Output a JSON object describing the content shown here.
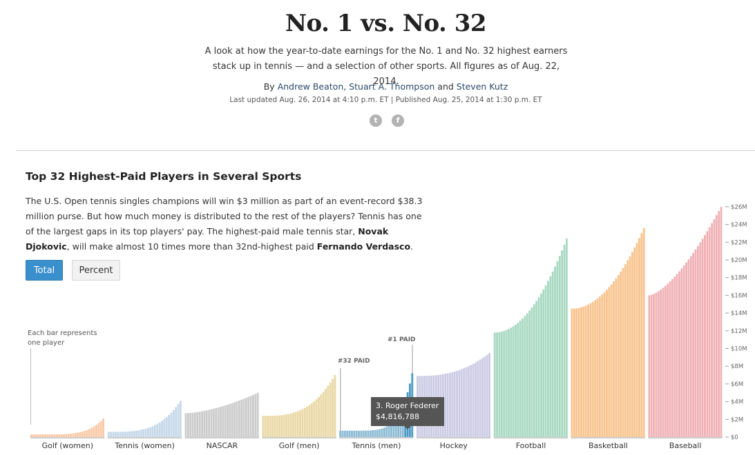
{
  "header": {
    "title": "No. 1 vs. No. 32",
    "dek": "A look at how the year-to-date earnings for the No. 1 and No. 32 highest earners stack up in tennis — and a selection of other sports. All figures as of Aug. 22, 2014.",
    "by": "By",
    "authors": [
      "Andrew Beaton",
      "Stuart A. Thompson",
      "Steven Kutz"
    ],
    "sep": ", ",
    "and": " and ",
    "dateline": "Last updated Aug. 26, 2014 at 4:10 p.m. ET | Published Aug. 25, 2014 at 1:30 p.m. ET"
  },
  "share": {
    "twitter_icon": "twitter-icon",
    "facebook_icon": "facebook-icon"
  },
  "chart_section": {
    "title": "Top 32 Highest-Paid Players in Several Sports",
    "desc_1": "The U.S. Open tennis singles champions will win $3 million as part of an event-record $38.3 million purse. But how much money is distributed to the rest of the players? Tennis has one of the largest gaps in its top players' pay. The highest-paid male tennis star, ",
    "desc_bold_1": "Novak Djokovic",
    "desc_2": ", will make almost 10 times more than 32nd-highest paid ",
    "desc_bold_2": "Fernando Verdasco",
    "desc_3": ".",
    "buttons": {
      "total": "Total",
      "percent": "Percent"
    }
  },
  "annotations": {
    "each_bar": "Each bar represents one player",
    "num32": "#32 PAID",
    "num1": "#1 PAID"
  },
  "tooltip": {
    "name": "3. Roger Federer",
    "value": "$4,816,788"
  },
  "chart_data": {
    "type": "bar",
    "ylim": [
      0,
      26
    ],
    "yticks": [
      "$0",
      "$2M",
      "$4M",
      "$6M",
      "$8M",
      "$10M",
      "$12M",
      "$14M",
      "$16M",
      "$18M",
      "$20M",
      "$22M",
      "$24M",
      "$26M"
    ],
    "sports": [
      {
        "name": "Golf (women)",
        "color": "#f9c9a6",
        "min": 0.3,
        "max": 2.1,
        "curve": 5
      },
      {
        "name": "Tennis (women)",
        "color": "#c6d8e9",
        "min": 0.6,
        "max": 4.1,
        "curve": 3.5
      },
      {
        "name": "NASCAR",
        "color": "#cccccc",
        "min": 2.7,
        "max": 5.0,
        "curve": 1.6
      },
      {
        "name": "Golf (men)",
        "color": "#ead9a6",
        "min": 2.4,
        "max": 7.0,
        "curve": 3
      },
      {
        "name": "Tennis (men)",
        "color": "#8dbcd5",
        "highlight": "#4f9bc4",
        "min": 0.72,
        "max": 7.2,
        "curve": 6
      },
      {
        "name": "Hockey",
        "color": "#cccbe5",
        "min": 6.9,
        "max": 9.5,
        "curve": 2.5
      },
      {
        "name": "Football",
        "color": "#a9d9c3",
        "min": 11.8,
        "max": 22.4,
        "curve": 2
      },
      {
        "name": "Basketball",
        "color": "#f8c48f",
        "min": 14.5,
        "max": 23.6,
        "curve": 2
      },
      {
        "name": "Baseball",
        "color": "#f0b2b6",
        "min": 16.0,
        "max": 26.0,
        "curve": 1.5
      }
    ]
  }
}
